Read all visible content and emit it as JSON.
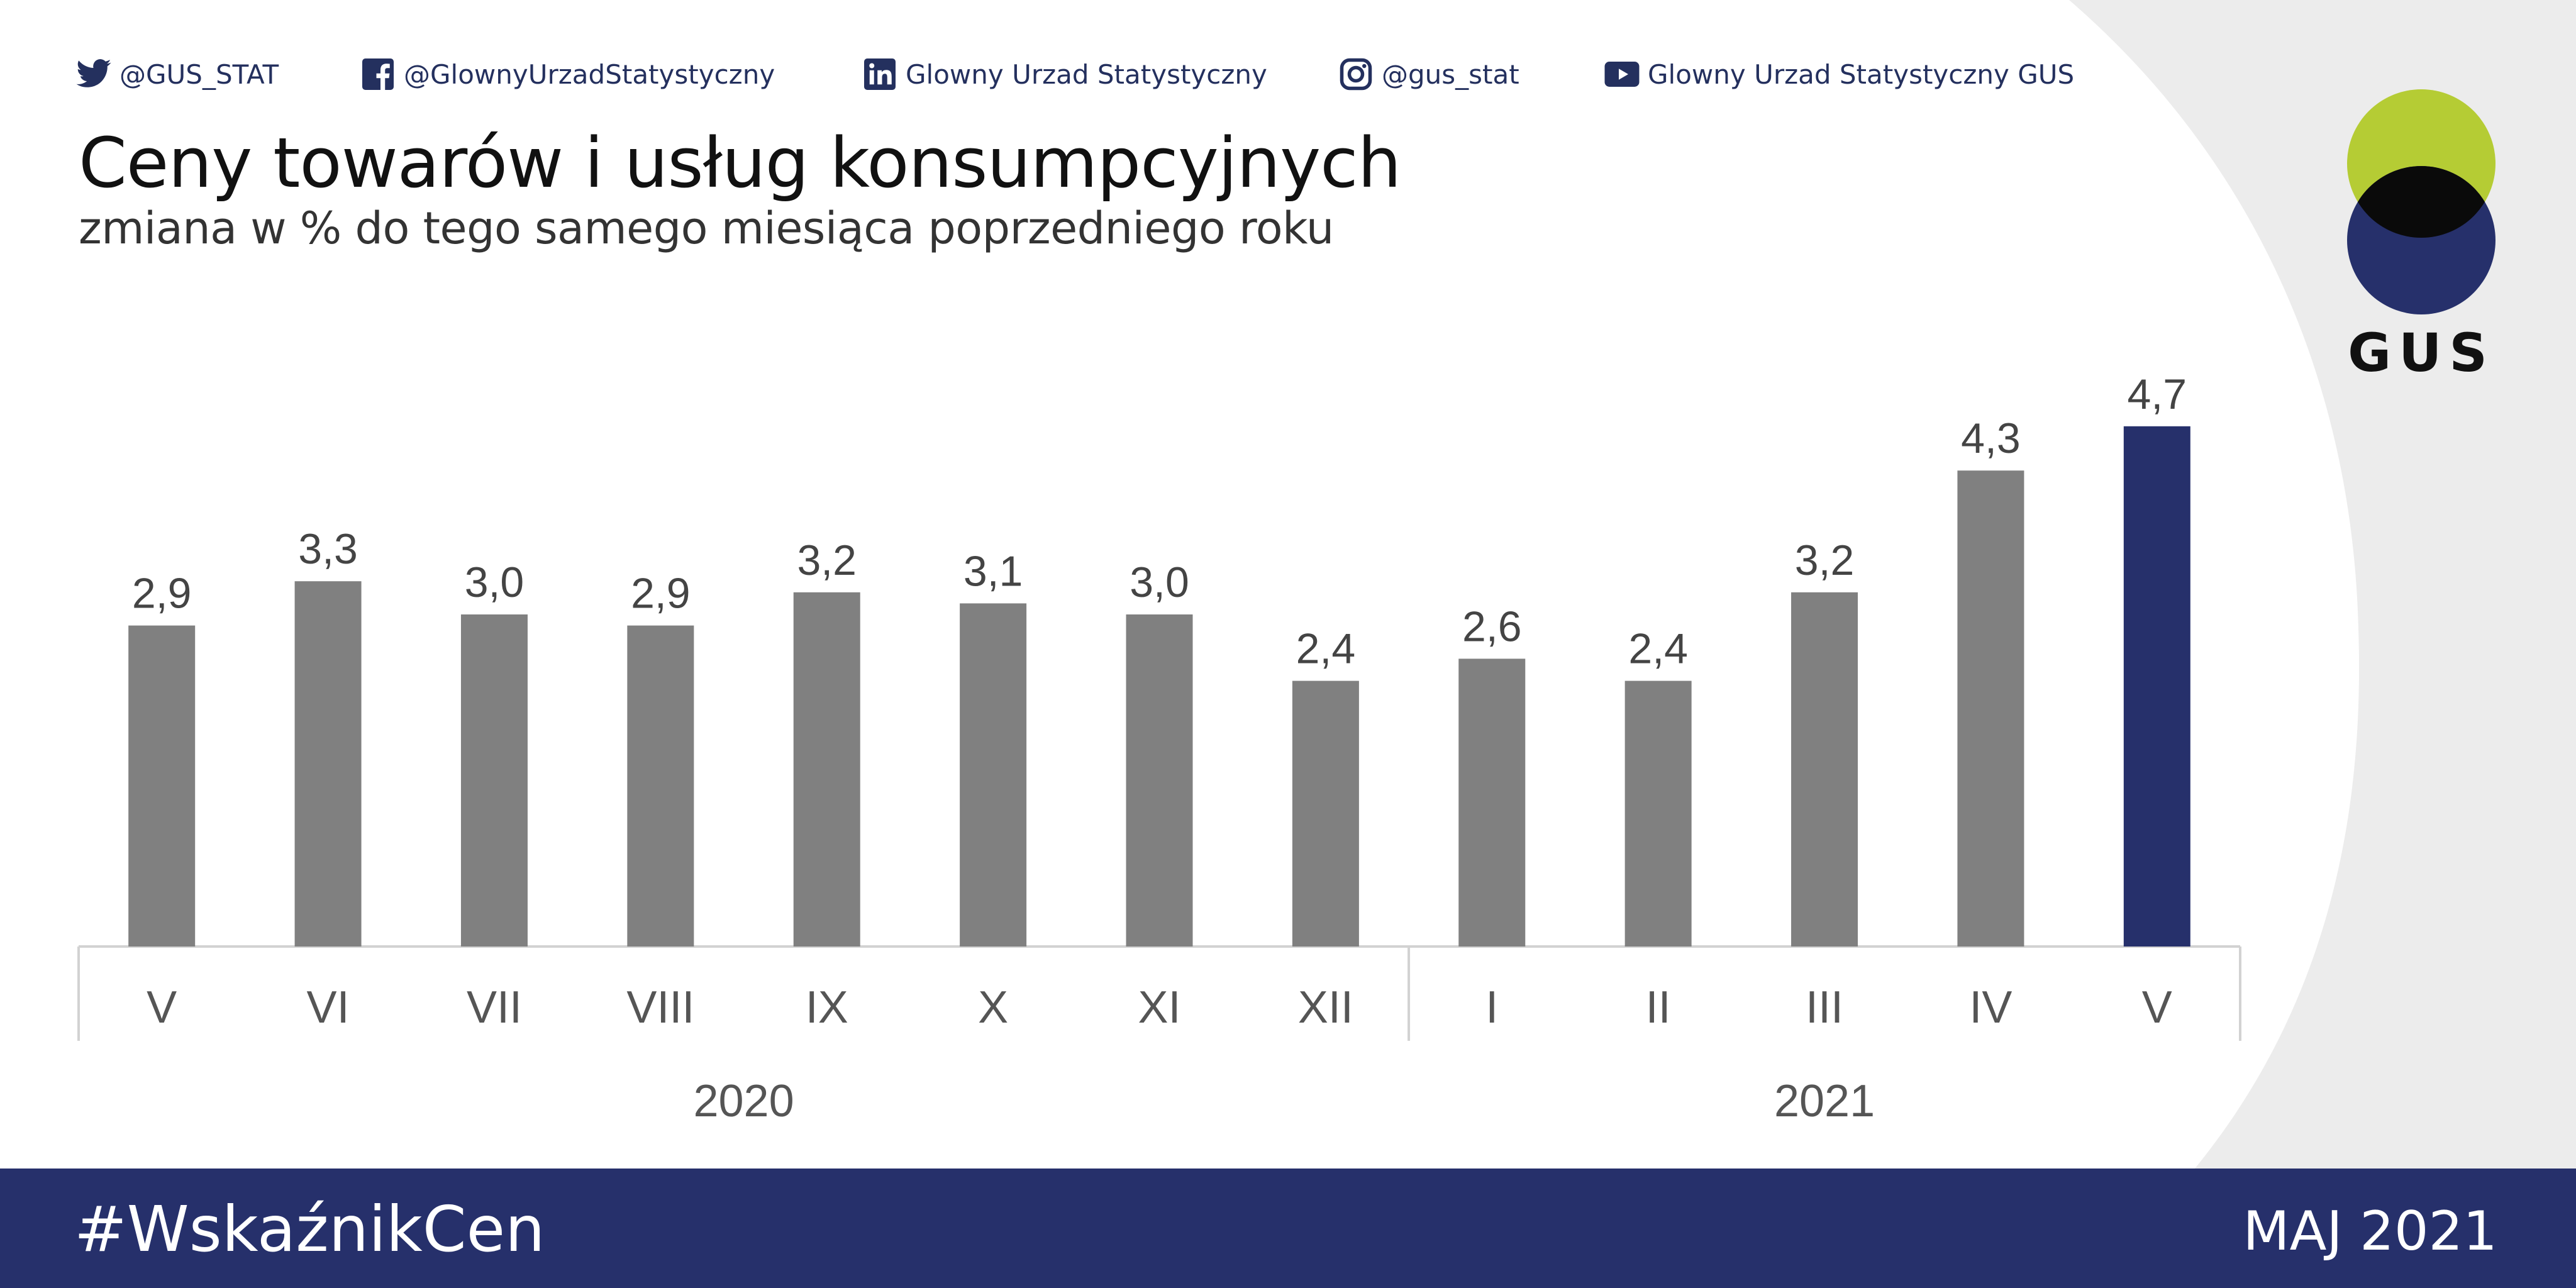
{
  "social": {
    "twitter": {
      "icon": "twitter-bird-icon",
      "label": "@GUS_STAT"
    },
    "facebook": {
      "icon": "facebook-icon",
      "label": "@GlownyUrzadStatystyczny"
    },
    "linkedin": {
      "icon": "linkedin-icon",
      "label": "Glowny Urzad Statystyczny"
    },
    "instagram": {
      "icon": "instagram-icon",
      "label": "@gus_stat"
    },
    "youtube": {
      "icon": "youtube-icon",
      "label": "Glowny Urzad Statystyczny GUS"
    }
  },
  "logo": {
    "text": "GUS"
  },
  "colors": {
    "bar": "#808080",
    "bar_highlight": "#26306b",
    "footer": "#26306b",
    "logo_green": "#b5cc34",
    "logo_navy": "#26306b",
    "logo_overlap": "#0a0a0a"
  },
  "chart_data": {
    "type": "bar",
    "title": "Ceny towarów i usług konsumpcyjnych",
    "subtitle": "zmiana w % do tego samego miesiąca poprzedniego roku",
    "categories": [
      "V",
      "VI",
      "VII",
      "VIII",
      "IX",
      "X",
      "XI",
      "XII",
      "I",
      "II",
      "III",
      "IV",
      "V"
    ],
    "values": [
      2.9,
      3.3,
      3.0,
      2.9,
      3.2,
      3.1,
      3.0,
      2.4,
      2.6,
      2.4,
      3.2,
      4.3,
      4.7
    ],
    "value_labels": [
      "2,9",
      "3,3",
      "3,0",
      "2,9",
      "3,2",
      "3,1",
      "3,0",
      "2,4",
      "2,6",
      "2,4",
      "3,2",
      "4,3",
      "4,7"
    ],
    "groups": [
      {
        "label": "2020",
        "count": 8
      },
      {
        "label": "2021",
        "count": 5
      }
    ],
    "highlight_index": 12,
    "ylim": [
      0,
      5
    ],
    "grid": false,
    "legend": "none"
  },
  "footer": {
    "hashtag": "#WskaźnikCen",
    "date": "MAJ 2021"
  }
}
